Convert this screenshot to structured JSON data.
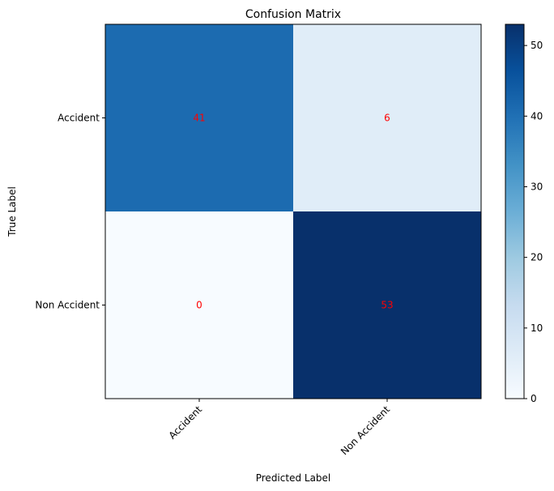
{
  "chart_data": {
    "type": "heatmap",
    "title": "Confusion Matrix",
    "xlabel": "Predicted Label",
    "ylabel": "True Label",
    "x_categories": [
      "Accident",
      "Non Accident"
    ],
    "y_categories": [
      "Accident",
      "Non Accident"
    ],
    "values": [
      [
        41,
        6
      ],
      [
        0,
        53
      ]
    ],
    "value_text_color": "#ff0000",
    "colormap": "Blues",
    "colorbar": {
      "min": 0,
      "max": 53,
      "ticks": [
        0,
        10,
        20,
        30,
        40,
        50
      ]
    }
  }
}
